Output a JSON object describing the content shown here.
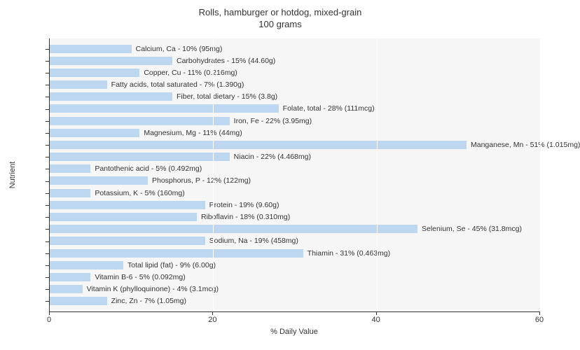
{
  "chart": {
    "type": "bar",
    "title_line1": "Rolls, hamburger or hotdog, mixed-grain",
    "title_line2": "100 grams",
    "title_fontsize": 13,
    "x_label": "% Daily Value",
    "y_label": "Nutrient",
    "label_fontsize": 11,
    "bar_label_fontsize": 10.5,
    "background_color": "#ffffff",
    "plot_bg_color": "#f6f6f6",
    "grid_color": "#ffffff",
    "axis_color": "#333333",
    "text_color": "#333333",
    "bar_color": "#bdd7f0",
    "xlim": [
      0,
      60
    ],
    "xtick_step": 20,
    "xticks": [
      0,
      20,
      40,
      60
    ],
    "nutrients": [
      {
        "label": "Calcium, Ca - 10% (95mg)",
        "value": 10
      },
      {
        "label": "Carbohydrates - 15% (44.60g)",
        "value": 15
      },
      {
        "label": "Copper, Cu - 11% (0.216mg)",
        "value": 11
      },
      {
        "label": "Fatty acids, total saturated - 7% (1.390g)",
        "value": 7
      },
      {
        "label": "Fiber, total dietary - 15% (3.8g)",
        "value": 15
      },
      {
        "label": "Folate, total - 28% (111mcg)",
        "value": 28
      },
      {
        "label": "Iron, Fe - 22% (3.95mg)",
        "value": 22
      },
      {
        "label": "Magnesium, Mg - 11% (44mg)",
        "value": 11
      },
      {
        "label": "Manganese, Mn - 51% (1.015mg)",
        "value": 51
      },
      {
        "label": "Niacin - 22% (4.468mg)",
        "value": 22
      },
      {
        "label": "Pantothenic acid - 5% (0.492mg)",
        "value": 5
      },
      {
        "label": "Phosphorus, P - 12% (122mg)",
        "value": 12
      },
      {
        "label": "Potassium, K - 5% (160mg)",
        "value": 5
      },
      {
        "label": "Protein - 19% (9.60g)",
        "value": 19
      },
      {
        "label": "Riboflavin - 18% (0.310mg)",
        "value": 18
      },
      {
        "label": "Selenium, Se - 45% (31.8mcg)",
        "value": 45
      },
      {
        "label": "Sodium, Na - 19% (458mg)",
        "value": 19
      },
      {
        "label": "Thiamin - 31% (0.463mg)",
        "value": 31
      },
      {
        "label": "Total lipid (fat) - 9% (6.00g)",
        "value": 9
      },
      {
        "label": "Vitamin B-6 - 5% (0.092mg)",
        "value": 5
      },
      {
        "label": "Vitamin K (phylloquinone) - 4% (3.1mcg)",
        "value": 4
      },
      {
        "label": "Zinc, Zn - 7% (1.05mg)",
        "value": 7
      }
    ]
  }
}
